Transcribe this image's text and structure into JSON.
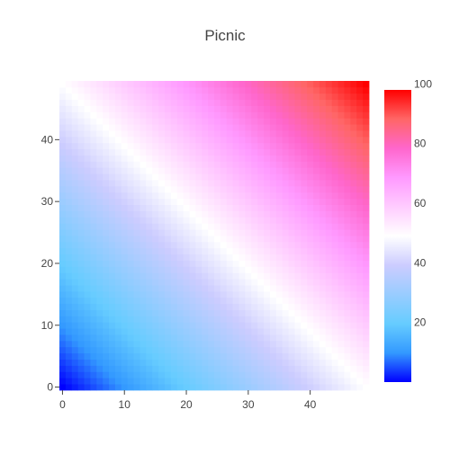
{
  "chart_data": {
    "type": "heatmap",
    "title": "Picnic",
    "colorscale": "Picnic",
    "x_range": [
      0,
      49
    ],
    "y_range": [
      0,
      49
    ],
    "z_formula": "z = x + y",
    "z_range": [
      0,
      98
    ],
    "x_ticks": [
      "0",
      "10",
      "20",
      "30",
      "40"
    ],
    "y_ticks": [
      "0",
      "10",
      "20",
      "30",
      "40"
    ],
    "colorbar_ticks": [
      "20",
      "40",
      "60",
      "80",
      "100"
    ],
    "colorscale_stops": [
      [
        0.0,
        "#0000ff"
      ],
      [
        0.1,
        "#3399ff"
      ],
      [
        0.2,
        "#66ccff"
      ],
      [
        0.3,
        "#99ccff"
      ],
      [
        0.4,
        "#ccccff"
      ],
      [
        0.5,
        "#ffffff"
      ],
      [
        0.6,
        "#ffccff"
      ],
      [
        0.7,
        "#ff99ff"
      ],
      [
        0.8,
        "#ff66cc"
      ],
      [
        0.9,
        "#ff6666"
      ],
      [
        1.0,
        "#ff0000"
      ]
    ],
    "grid": false
  }
}
